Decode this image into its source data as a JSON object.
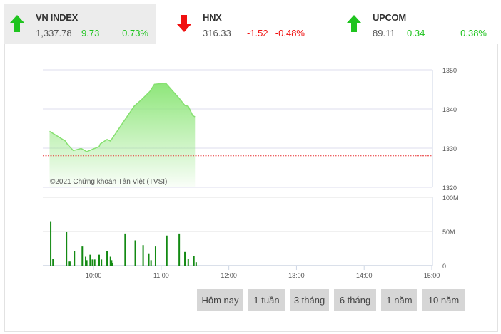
{
  "indices": [
    {
      "name": "VN INDEX",
      "value": "1,337.78",
      "change": "9.73",
      "percent": "0.73%",
      "direction": "up",
      "active": true
    },
    {
      "name": "HNX",
      "value": "316.33",
      "change": "-1.52",
      "percent": "-0.48%",
      "direction": "down",
      "active": false
    },
    {
      "name": "UPCOM",
      "value": "89.11",
      "change": "0.34",
      "percent": "0.38%",
      "direction": "up",
      "active": false
    }
  ],
  "colors": {
    "up": "#1fc41f",
    "down": "#f01010",
    "area": "#8ee67a",
    "volume": "#138a13",
    "reference": "#e83030"
  },
  "chart_data": [
    {
      "type": "area",
      "ylim": [
        1320,
        1350
      ],
      "yticks": [
        "1350",
        "1340",
        "1330",
        "1320"
      ],
      "reference": 1328.05,
      "watermark": "©2021 Chứng khoán Tân Việt (TVSI)",
      "x": [
        "09:21",
        "09:35",
        "09:37",
        "09:42",
        "09:49",
        "09:54",
        "10:05",
        "10:06",
        "10:12",
        "10:15",
        "10:36",
        "10:43",
        "10:50",
        "10:54",
        "11:04",
        "11:16",
        "11:21",
        "11:24",
        "11:28",
        "11:30"
      ],
      "values": [
        1334.3,
        1331.8,
        1330.9,
        1329.4,
        1329.9,
        1329.1,
        1330.4,
        1331.1,
        1332.2,
        1331.8,
        1340.7,
        1342.5,
        1344.5,
        1346.3,
        1346.6,
        1342.7,
        1340.9,
        1340.7,
        1338.3,
        1338.0
      ]
    },
    {
      "type": "bar",
      "ylim": [
        0,
        100
      ],
      "yticks": [
        "100M",
        "50M",
        "0"
      ],
      "xrange": [
        "09:15",
        "15:00"
      ],
      "xticks": [
        "10:00",
        "11:00",
        "12:00",
        "13:00",
        "14:00",
        "15:00"
      ],
      "x": [
        "09:22",
        "09:24",
        "09:36",
        "09:38",
        "09:39",
        "09:43",
        "09:50",
        "09:53",
        "09:54",
        "09:57",
        "09:59",
        "10:01",
        "10:05",
        "10:07",
        "10:12",
        "10:15",
        "10:16",
        "10:17",
        "10:28",
        "10:37",
        "10:44",
        "10:49",
        "10:51",
        "10:55",
        "11:05",
        "11:16",
        "11:21",
        "11:24",
        "11:29",
        "11:31"
      ],
      "values": [
        64,
        10,
        49,
        6,
        6,
        21,
        28,
        13,
        8,
        16,
        9,
        9,
        16,
        9,
        21,
        13,
        8,
        4,
        47,
        37,
        30,
        18,
        8,
        28,
        44,
        47,
        20,
        10,
        14,
        5
      ]
    }
  ],
  "range_buttons": [
    "Hôm nay",
    "1 tuần",
    "3 tháng",
    "6 tháng",
    "1 năm",
    "10 năm"
  ]
}
